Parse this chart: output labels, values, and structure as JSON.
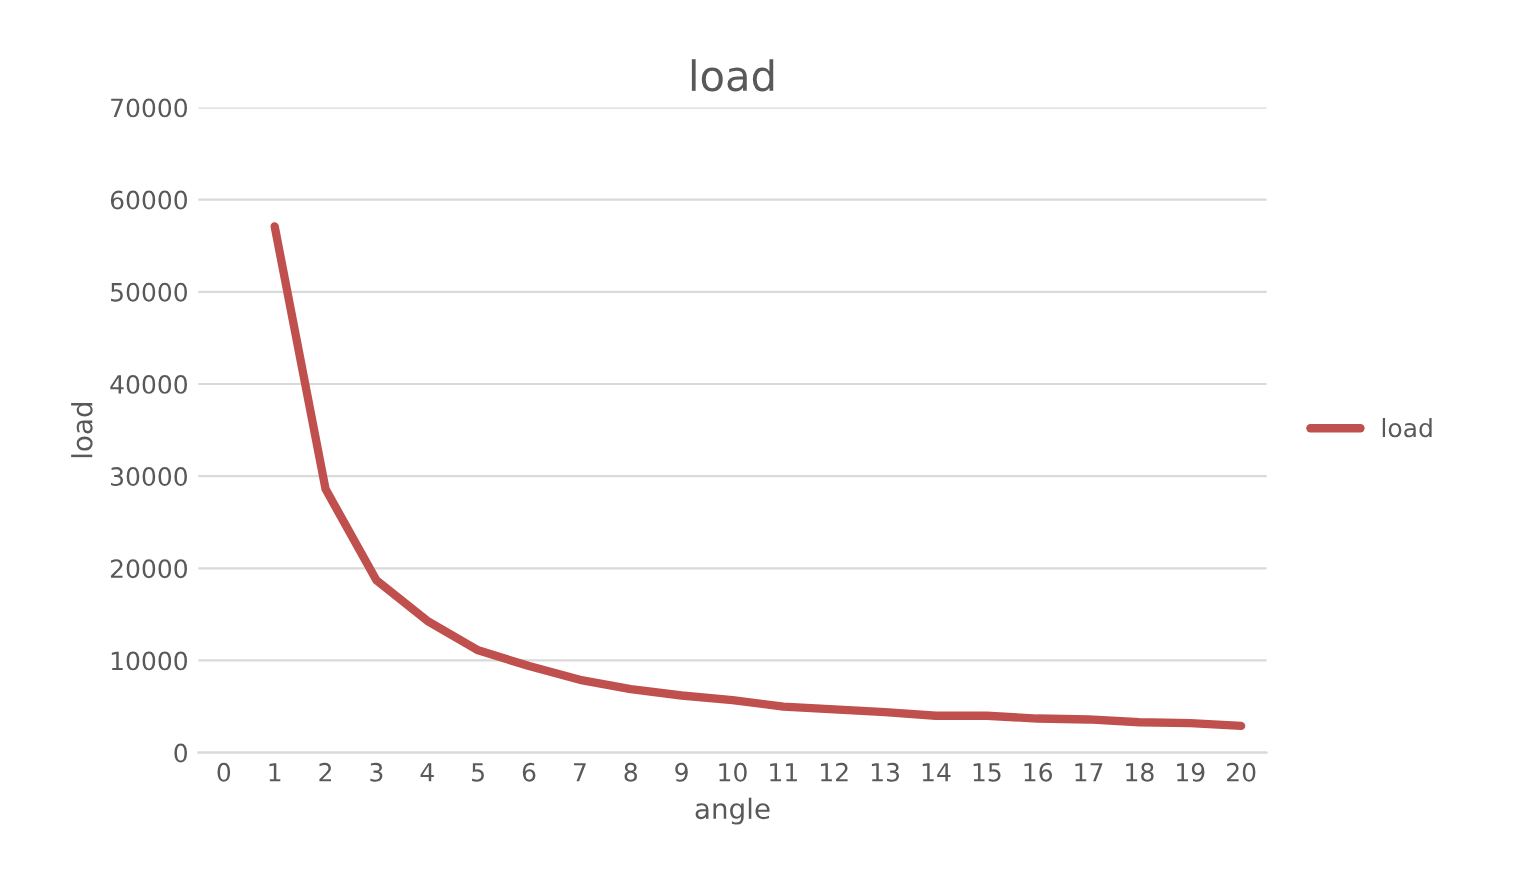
{
  "chart_data": {
    "type": "line",
    "title": "load",
    "xlabel": "angle",
    "ylabel": "load",
    "categories": [
      "0",
      "1",
      "2",
      "3",
      "4",
      "5",
      "6",
      "7",
      "8",
      "9",
      "10",
      "11",
      "12",
      "13",
      "14",
      "15",
      "16",
      "17",
      "18",
      "19",
      "20"
    ],
    "series": [
      {
        "name": "load",
        "color": "#c0504d",
        "values": [
          null,
          57100,
          28600,
          18700,
          14300,
          11100,
          9400,
          7900,
          6900,
          6200,
          5700,
          5000,
          4700,
          4400,
          4000,
          4000,
          3700,
          3600,
          3300,
          3200,
          2900
        ]
      }
    ],
    "ylim": [
      0,
      70000
    ],
    "yticks": [
      0,
      10000,
      20000,
      30000,
      40000,
      50000,
      60000,
      70000
    ],
    "grid": "y",
    "legend": "right",
    "marker": "none",
    "line_style": "solid"
  }
}
